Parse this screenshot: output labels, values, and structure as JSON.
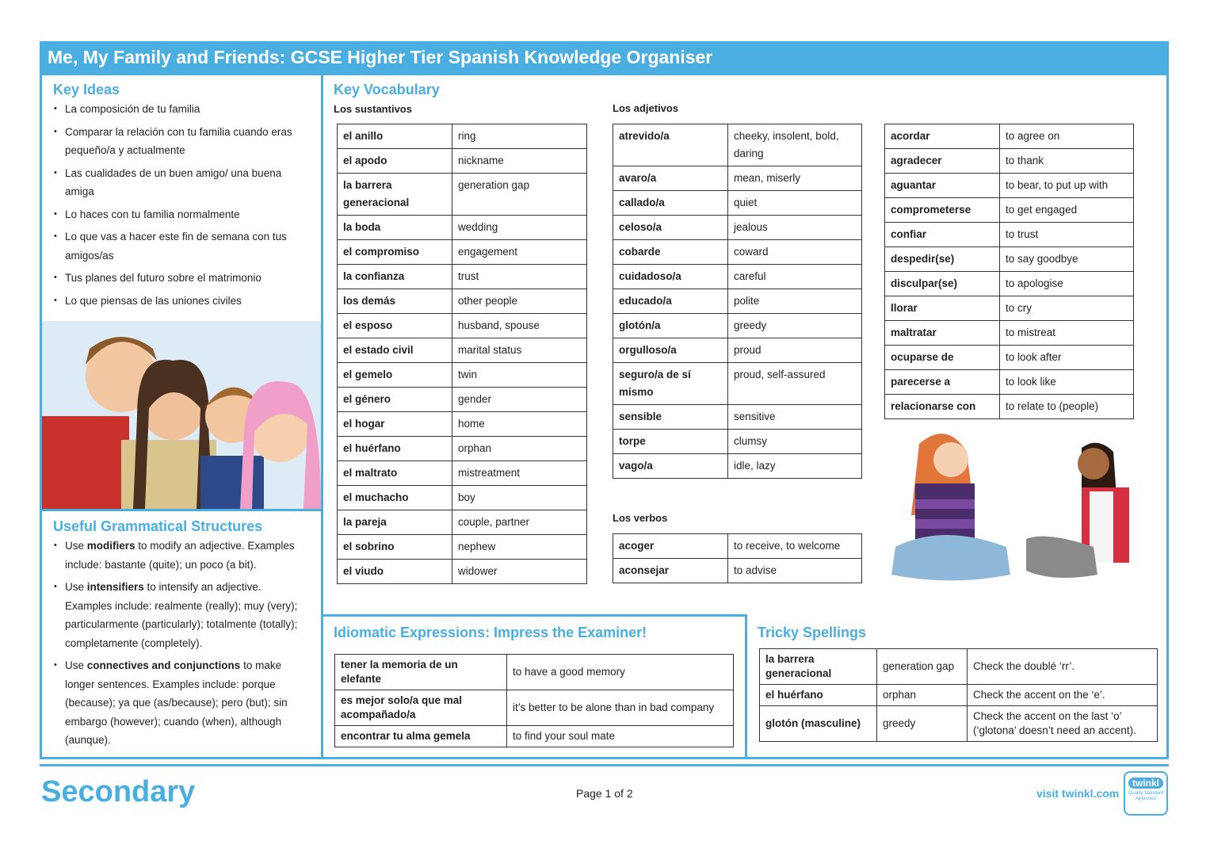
{
  "header": {
    "title": "Me, My Family and Friends: GCSE Higher Tier Spanish Knowledge Organiser"
  },
  "key_ideas": {
    "title": "Key Ideas",
    "items": [
      "La composición de tu familia",
      "Comparar la relación con tu familia cuando eras pequeño/a y actualmente",
      "Las cualidades de un buen amigo/ una buena amiga",
      "Lo haces con tu familia normalmente",
      "Lo que vas a hacer este fin de semana con tus amigos/as",
      "Tus planes del futuro sobre el matrimonio",
      "Lo que piensas de las uniones civiles"
    ]
  },
  "grammar": {
    "title": "Useful Grammatical Structures",
    "items": [
      {
        "before": "Use ",
        "bold": "modifiers",
        "after": " to modify an adjective. Examples include: bastante (quite); un poco (a bit)."
      },
      {
        "before": "Use ",
        "bold": "intensifiers",
        "after": " to intensify an adjective. Examples include: realmente (really); muy (very); particularmente (particularly); totalmente (totally); completamente (completely)."
      },
      {
        "before": "Use ",
        "bold": "connectives and conjunctions",
        "after": " to make longer sentences.  Examples include: porque (because); ya que (as/because); pero (but); sin embargo (however); cuando (when), although (aunque)."
      }
    ]
  },
  "vocabulary": {
    "title": "Key Vocabulary",
    "nouns": {
      "heading": "Los sustantivos",
      "rows": [
        [
          "el anillo",
          "ring"
        ],
        [
          "el apodo",
          "nickname"
        ],
        [
          "la barrera generacional",
          "generation gap"
        ],
        [
          "la boda",
          "wedding"
        ],
        [
          "el compromiso",
          "engagement"
        ],
        [
          "la confianza",
          "trust"
        ],
        [
          "los demás",
          "other people"
        ],
        [
          "el esposo",
          "husband, spouse"
        ],
        [
          "el estado civil",
          "marital status"
        ],
        [
          "el gemelo",
          "twin"
        ],
        [
          "el género",
          "gender"
        ],
        [
          "el hogar",
          "home"
        ],
        [
          "el huérfano",
          "orphan"
        ],
        [
          "el maltrato",
          "mistreatment"
        ],
        [
          "el muchacho",
          "boy"
        ],
        [
          "la pareja",
          "couple, partner"
        ],
        [
          "el sobrino",
          "nephew"
        ],
        [
          "el viudo",
          "widower"
        ]
      ]
    },
    "adjectives": {
      "heading": "Los adjetivos",
      "rows": [
        [
          "atrevido/a",
          "cheeky, insolent, bold, daring"
        ],
        [
          "avaro/a",
          "mean, miserly"
        ],
        [
          "callado/a",
          "quiet"
        ],
        [
          "celoso/a",
          "jealous"
        ],
        [
          "cobarde",
          "coward"
        ],
        [
          "cuidadoso/a",
          "careful"
        ],
        [
          "educado/a",
          "polite"
        ],
        [
          "glotón/a",
          "greedy"
        ],
        [
          "orgulloso/a",
          "proud"
        ],
        [
          "seguro/a de sí mismo",
          "proud, self-assured"
        ],
        [
          "sensible",
          "sensitive"
        ],
        [
          "torpe",
          "clumsy"
        ],
        [
          "vago/a",
          "idle, lazy"
        ]
      ]
    },
    "verbs": {
      "heading": "Los verbos",
      "rows": [
        [
          "acoger",
          "to receive, to welcome"
        ],
        [
          "aconsejar",
          "to advise"
        ]
      ]
    },
    "verbs_more": {
      "rows": [
        [
          "acordar",
          "to agree on"
        ],
        [
          "agradecer",
          "to thank"
        ],
        [
          "aguantar",
          "to bear, to put up with"
        ],
        [
          "comprometerse",
          "to get engaged"
        ],
        [
          "confiar",
          "to trust"
        ],
        [
          "despedir(se)",
          "to say goodbye"
        ],
        [
          "disculpar(se)",
          "to apologise"
        ],
        [
          "llorar",
          "to cry"
        ],
        [
          "maltratar",
          "to mistreat"
        ],
        [
          "ocuparse de",
          "to look after"
        ],
        [
          "parecerse a",
          "to look like"
        ],
        [
          "relacionarse con",
          "to relate to (people)"
        ]
      ]
    }
  },
  "idioms": {
    "title": "Idiomatic Expressions: Impress the Examiner!",
    "rows": [
      [
        "tener la memoria de un elefante",
        "to have a good memory"
      ],
      [
        "es mejor solo/a que mal acompañado/a",
        "it’s better to be alone than in bad company"
      ],
      [
        "encontrar tu alma gemela",
        "to find your soul mate"
      ]
    ]
  },
  "tricky": {
    "title": "Tricky Spellings",
    "rows": [
      [
        "la barrera generacional",
        "generation gap",
        "Check the doublé ‘rr’."
      ],
      [
        "el huérfano",
        "orphan",
        "Check the accent on the ‘e’."
      ],
      [
        "glotón (masculine)",
        "greedy",
        "Check the accent on the last ‘o’ (‘glotona’ doesn’t need an accent)."
      ]
    ]
  },
  "footer": {
    "brand": "Secondary",
    "page": "Page 1 of 2",
    "link": "visit twinkl.com",
    "badge": "twinkl",
    "badge_sub": "Quality Standard Approved"
  }
}
